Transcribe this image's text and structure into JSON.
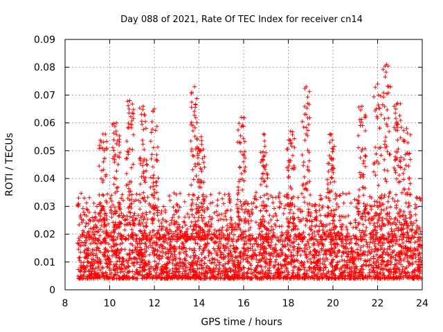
{
  "chart_data": {
    "type": "scatter",
    "title": "Day 088 of 2021, Rate Of TEC Index for receiver cn14",
    "xlabel": "GPS time / hours",
    "ylabel": "ROTI / TECUs",
    "xlim": [
      8,
      24
    ],
    "ylim": [
      0,
      0.09
    ],
    "x_ticks": [
      8,
      10,
      12,
      14,
      16,
      18,
      20,
      22,
      24
    ],
    "x_tick_labels": [
      "8",
      "10",
      "12",
      "14",
      "16",
      "18",
      "20",
      "22",
      "24"
    ],
    "y_ticks": [
      0,
      0.01,
      0.02,
      0.03,
      0.04,
      0.05,
      0.06,
      0.07,
      0.08,
      0.09
    ],
    "y_tick_labels": [
      "0",
      "0.01",
      "0.02",
      "0.03",
      "0.04",
      "0.05",
      "0.06",
      "0.07",
      "0.08",
      "0.09"
    ],
    "grid": true,
    "marker": "+",
    "color": "#ff0000",
    "series": [
      {
        "name": "ROTI",
        "x_range": [
          8.55,
          23.95
        ],
        "baseline_range": [
          0.004,
          0.02
        ],
        "peaks": [
          {
            "x": 9.7,
            "y": 0.056
          },
          {
            "x": 10.3,
            "y": 0.06
          },
          {
            "x": 10.9,
            "y": 0.068
          },
          {
            "x": 11.5,
            "y": 0.066
          },
          {
            "x": 12.0,
            "y": 0.065
          },
          {
            "x": 13.8,
            "y": 0.073
          },
          {
            "x": 14.1,
            "y": 0.055
          },
          {
            "x": 15.9,
            "y": 0.062
          },
          {
            "x": 16.9,
            "y": 0.056
          },
          {
            "x": 18.1,
            "y": 0.057
          },
          {
            "x": 18.8,
            "y": 0.073
          },
          {
            "x": 19.9,
            "y": 0.056
          },
          {
            "x": 21.3,
            "y": 0.066
          },
          {
            "x": 22.0,
            "y": 0.074
          },
          {
            "x": 22.4,
            "y": 0.081
          },
          {
            "x": 22.9,
            "y": 0.067
          },
          {
            "x": 23.3,
            "y": 0.058
          }
        ]
      }
    ]
  }
}
